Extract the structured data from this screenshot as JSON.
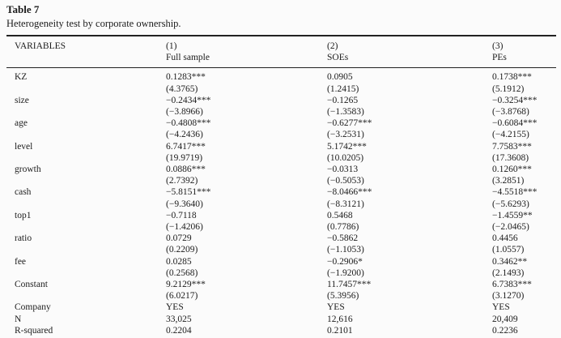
{
  "table": {
    "title": "Table 7",
    "subtitle": "Heterogeneity test by corporate ownership.",
    "header": {
      "variables_label": "VARIABLES",
      "columns": [
        {
          "number": "(1)",
          "name": "Full sample"
        },
        {
          "number": "(2)",
          "name": "SOEs"
        },
        {
          "number": "(3)",
          "name": "PEs"
        }
      ]
    },
    "rows": [
      {
        "label": "KZ",
        "coef": [
          "0.1283***",
          "0.0905",
          "0.1738***"
        ],
        "tstat": [
          "(4.3765)",
          "(1.2415)",
          "(5.1912)"
        ]
      },
      {
        "label": "size",
        "coef": [
          "−0.2434***",
          "−0.1265",
          "−0.3254***"
        ],
        "tstat": [
          "(−3.8966)",
          "(−1.3583)",
          "(−3.8768)"
        ]
      },
      {
        "label": "age",
        "coef": [
          "−0.4808***",
          "−0.6277***",
          "−0.6084***"
        ],
        "tstat": [
          "(−4.2436)",
          "(−3.2531)",
          "(−4.2155)"
        ]
      },
      {
        "label": "level",
        "coef": [
          "6.7417***",
          "5.1742***",
          "7.7583***"
        ],
        "tstat": [
          "(19.9719)",
          "(10.0205)",
          "(17.3608)"
        ]
      },
      {
        "label": "growth",
        "coef": [
          "0.0886***",
          "−0.0313",
          "0.1260***"
        ],
        "tstat": [
          "(2.7392)",
          "(−0.5053)",
          "(3.2851)"
        ]
      },
      {
        "label": "cash",
        "coef": [
          "−5.8151***",
          "−8.0466***",
          "−4.5518***"
        ],
        "tstat": [
          "(−9.3640)",
          "(−8.3121)",
          "(−5.6293)"
        ]
      },
      {
        "label": "top1",
        "coef": [
          "−0.7118",
          "0.5468",
          "−1.4559**"
        ],
        "tstat": [
          "(−1.4206)",
          "(0.7786)",
          "(−2.0465)"
        ]
      },
      {
        "label": "ratio",
        "coef": [
          "0.0729",
          "−0.5862",
          "0.4456"
        ],
        "tstat": [
          "(0.2209)",
          "(−1.1053)",
          "(1.0557)"
        ]
      },
      {
        "label": "fee",
        "coef": [
          "0.0285",
          "−0.2906*",
          "0.3462**"
        ],
        "tstat": [
          "(0.2568)",
          "(−1.9200)",
          "(2.1493)"
        ]
      },
      {
        "label": "Constant",
        "coef": [
          "9.2129***",
          "11.7457***",
          "6.7383***"
        ],
        "tstat": [
          "(6.0217)",
          "(5.3956)",
          "(3.1270)"
        ]
      }
    ],
    "footer_rows": [
      {
        "label": "Company",
        "cells": [
          "YES",
          "YES",
          "YES"
        ]
      },
      {
        "label": "N",
        "cells": [
          "33,025",
          "12,616",
          "20,409"
        ]
      },
      {
        "label": "R-squared",
        "cells": [
          "0.2204",
          "0.2101",
          "0.2236"
        ]
      }
    ]
  }
}
